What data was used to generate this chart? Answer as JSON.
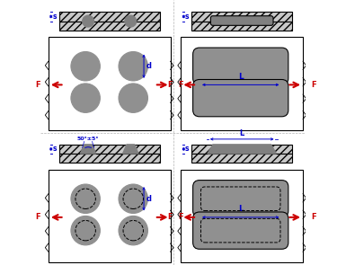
{
  "fig_width": 3.85,
  "fig_height": 2.95,
  "dpi": 100,
  "background": "#ffffff",
  "plate_color": "#c8c8c8",
  "weld_color": "#808080",
  "hole_color": "#909090",
  "dim_color": "#0000cc",
  "arrow_color": "#cc0000",
  "line_color": "#000000",
  "angle_label": "50°±5°",
  "d_label": "d",
  "L_label": "L",
  "s_label": "s",
  "F_label": "F"
}
